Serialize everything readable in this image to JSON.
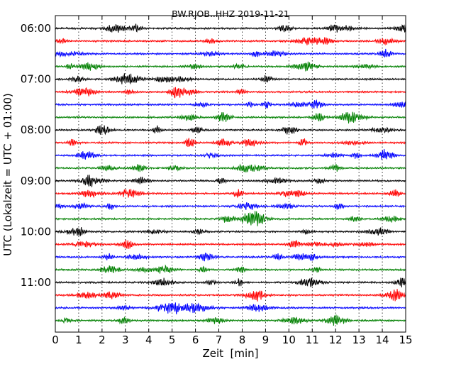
{
  "chart_data": {
    "type": "line",
    "subtype": "dayplot-seismogram",
    "title": "BW.RJOB..HHZ 2019-11-21",
    "xlabel": "Zeit  [min]",
    "ylabel": "UTC (Lokalzeit = UTC + 01:00)",
    "xlim": [
      0,
      15
    ],
    "x_ticks": [
      "0",
      "1",
      "2",
      "3",
      "4",
      "5",
      "6",
      "7",
      "8",
      "9",
      "10",
      "11",
      "12",
      "13",
      "14",
      "15"
    ],
    "y_tick_labels": [
      "06:00",
      "07:00",
      "08:00",
      "09:00",
      "10:00",
      "11:00"
    ],
    "trace_interval_minutes": 15,
    "traces_per_hour": 4,
    "grid": "vertical dotted at each minute",
    "colors": [
      "#000000",
      "#ff0000",
      "#0000ff",
      "#008000"
    ],
    "series": [
      {
        "start": "06:00",
        "color": "#000000"
      },
      {
        "start": "06:15",
        "color": "#ff0000"
      },
      {
        "start": "06:30",
        "color": "#0000ff"
      },
      {
        "start": "06:45",
        "color": "#008000"
      },
      {
        "start": "07:00",
        "color": "#000000"
      },
      {
        "start": "07:15",
        "color": "#ff0000"
      },
      {
        "start": "07:30",
        "color": "#0000ff"
      },
      {
        "start": "07:45",
        "color": "#008000"
      },
      {
        "start": "08:00",
        "color": "#000000"
      },
      {
        "start": "08:15",
        "color": "#ff0000"
      },
      {
        "start": "08:30",
        "color": "#0000ff"
      },
      {
        "start": "08:45",
        "color": "#008000"
      },
      {
        "start": "09:00",
        "color": "#000000"
      },
      {
        "start": "09:15",
        "color": "#ff0000"
      },
      {
        "start": "09:30",
        "color": "#0000ff"
      },
      {
        "start": "09:45",
        "color": "#008000"
      },
      {
        "start": "10:00",
        "color": "#000000"
      },
      {
        "start": "10:15",
        "color": "#ff0000"
      },
      {
        "start": "10:30",
        "color": "#0000ff"
      },
      {
        "start": "10:45",
        "color": "#008000"
      },
      {
        "start": "11:00",
        "color": "#000000"
      },
      {
        "start": "11:15",
        "color": "#ff0000"
      },
      {
        "start": "11:30",
        "color": "#0000ff"
      },
      {
        "start": "11:45",
        "color": "#008000"
      }
    ]
  }
}
